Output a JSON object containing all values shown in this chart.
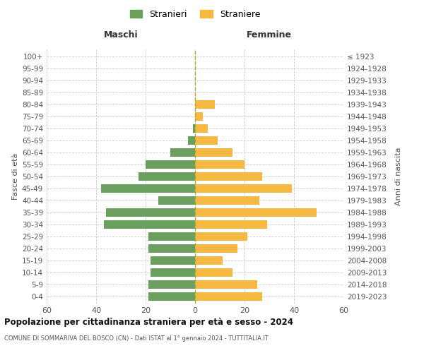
{
  "age_groups": [
    "0-4",
    "5-9",
    "10-14",
    "15-19",
    "20-24",
    "25-29",
    "30-34",
    "35-39",
    "40-44",
    "45-49",
    "50-54",
    "55-59",
    "60-64",
    "65-69",
    "70-74",
    "75-79",
    "80-84",
    "85-89",
    "90-94",
    "95-99",
    "100+"
  ],
  "birth_years": [
    "2019-2023",
    "2014-2018",
    "2009-2013",
    "2004-2008",
    "1999-2003",
    "1994-1998",
    "1989-1993",
    "1984-1988",
    "1979-1983",
    "1974-1978",
    "1969-1973",
    "1964-1968",
    "1959-1963",
    "1954-1958",
    "1949-1953",
    "1944-1948",
    "1939-1943",
    "1934-1938",
    "1929-1933",
    "1924-1928",
    "≤ 1923"
  ],
  "maschi": [
    19,
    19,
    18,
    18,
    19,
    19,
    37,
    36,
    15,
    38,
    23,
    20,
    10,
    3,
    1,
    0,
    0,
    0,
    0,
    0,
    0
  ],
  "femmine": [
    27,
    25,
    15,
    11,
    17,
    21,
    29,
    49,
    26,
    39,
    27,
    20,
    15,
    9,
    5,
    3,
    8,
    0,
    0,
    0,
    0
  ],
  "color_maschi": "#6a9f5e",
  "color_femmine": "#f5b942",
  "title": "Popolazione per cittadinanza straniera per età e sesso - 2024",
  "subtitle": "COMUNE DI SOMMARIVA DEL BOSCO (CN) - Dati ISTAT al 1° gennaio 2024 - TUTTITALIA.IT",
  "xlabel_left": "Maschi",
  "xlabel_right": "Femmine",
  "ylabel_left": "Fasce di età",
  "ylabel_right": "Anni di nascita",
  "legend_maschi": "Stranieri",
  "legend_femmine": "Straniere",
  "xlim": 60,
  "background_color": "#ffffff",
  "grid_color": "#cccccc",
  "dashed_line_color": "#aaa830"
}
